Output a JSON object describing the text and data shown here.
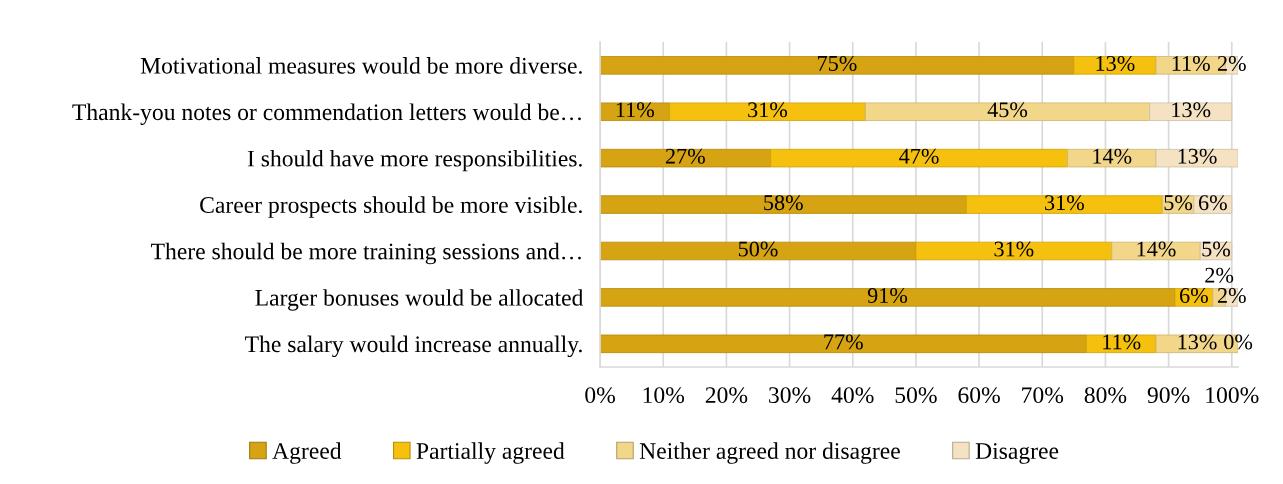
{
  "chart_data": {
    "type": "bar",
    "orientation": "horizontal",
    "stacked": true,
    "categories": [
      "Motivational measures would be more diverse.",
      "Thank-you notes or commendation letters would be…",
      "I should have more responsibilities.",
      "Career prospects should be more visible.",
      "There should be more training sessions and…",
      "Larger bonuses would be allocated",
      "The salary would increase annually."
    ],
    "series": [
      {
        "name": "Agreed",
        "color": "#d6a312",
        "values": [
          75,
          11,
          27,
          58,
          50,
          91,
          77
        ],
        "value_labels": [
          "75%",
          "11%",
          "27%",
          "58%",
          "50%",
          "91%",
          "77%"
        ]
      },
      {
        "name": "Partially agreed",
        "color": "#f5c00e",
        "values": [
          13,
          31,
          47,
          31,
          31,
          6,
          11
        ],
        "value_labels": [
          "13%",
          "31%",
          "47%",
          "31%",
          "31%",
          "6%",
          "11%"
        ]
      },
      {
        "name": "Neither agreed nor disagree",
        "color": "#f2d68a",
        "values": [
          11,
          45,
          14,
          5,
          14,
          2,
          13
        ],
        "value_labels": [
          "11%",
          "45%",
          "14%",
          "5%",
          "14%",
          "2%",
          "13%"
        ]
      },
      {
        "name": "Disagree",
        "color": "#f4e2c2",
        "values": [
          2,
          13,
          13,
          6,
          5,
          2,
          0
        ],
        "value_labels": [
          "2%",
          "13%",
          "13%",
          "6%",
          "5%",
          "2%",
          "0%"
        ]
      }
    ],
    "xlim": [
      0,
      101
    ],
    "xticks": [
      {
        "value": 0,
        "label": "0%"
      },
      {
        "value": 10,
        "label": "10%"
      },
      {
        "value": 20,
        "label": "20%"
      },
      {
        "value": 30,
        "label": "30%"
      },
      {
        "value": 40,
        "label": "40%"
      },
      {
        "value": 50,
        "label": "50%"
      },
      {
        "value": 60,
        "label": "60%"
      },
      {
        "value": 70,
        "label": "70%"
      },
      {
        "value": 80,
        "label": "80%"
      },
      {
        "value": 90,
        "label": "90%"
      },
      {
        "value": 100,
        "label": "100%"
      }
    ],
    "grid": "x",
    "legend": "bottom"
  }
}
